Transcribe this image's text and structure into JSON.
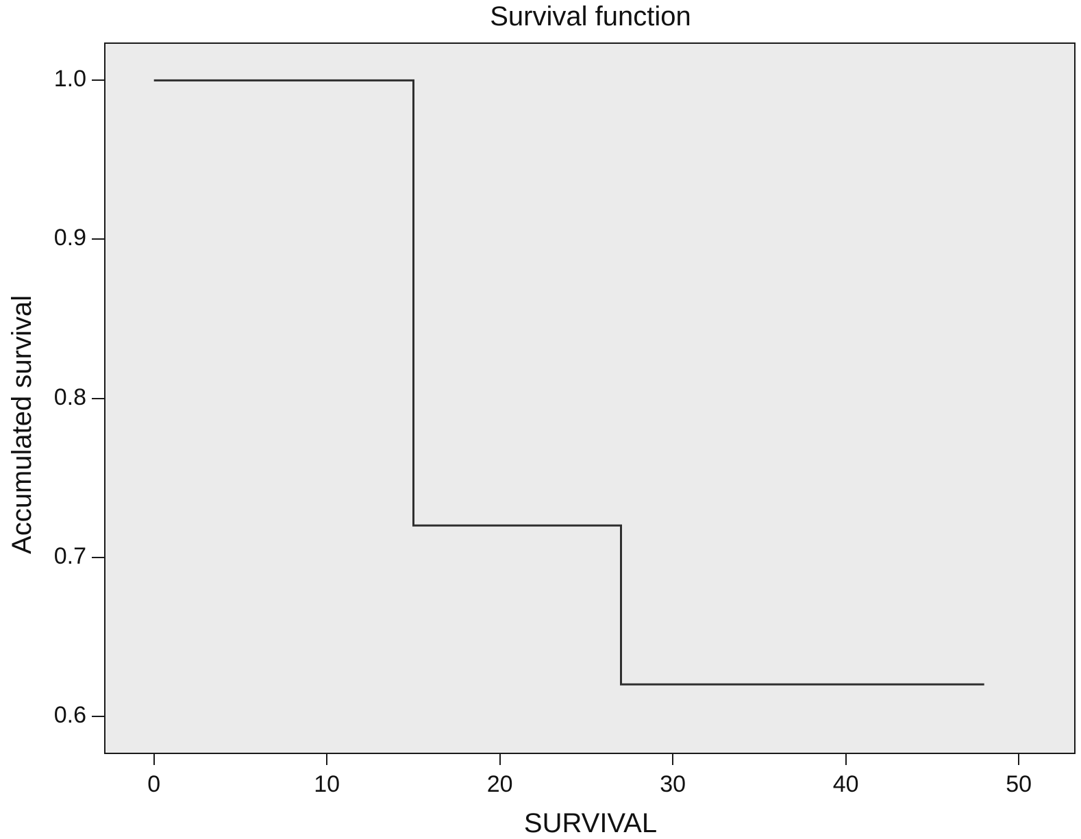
{
  "chart_data": {
    "type": "line",
    "subtype": "step",
    "title": "Survival function",
    "xlabel": "SURVIVAL",
    "ylabel": "Accumulated survival",
    "x_ticks": [
      0,
      10,
      20,
      30,
      40,
      50
    ],
    "x_tick_labels": [
      "0",
      "10",
      "20",
      "30",
      "40",
      "50"
    ],
    "y_ticks": [
      1.0,
      0.9,
      0.8,
      0.7,
      0.6
    ],
    "y_tick_labels": [
      "1.0",
      "0.9",
      "0.8",
      "0.7",
      "0.6"
    ],
    "xlim": [
      -2.8,
      53.2
    ],
    "ylim": [
      0.577,
      1.023
    ],
    "grid": false,
    "legend": "none",
    "plot_background_color": "#ebebeb",
    "axis_color": "#1a1a1a",
    "line_color": "#2f2f2f",
    "series": [
      {
        "name": "Survival function",
        "points": [
          [
            0,
            1.0
          ],
          [
            15,
            1.0
          ],
          [
            15,
            0.72
          ],
          [
            27,
            0.72
          ],
          [
            27,
            0.62
          ],
          [
            48,
            0.62
          ]
        ]
      }
    ]
  }
}
